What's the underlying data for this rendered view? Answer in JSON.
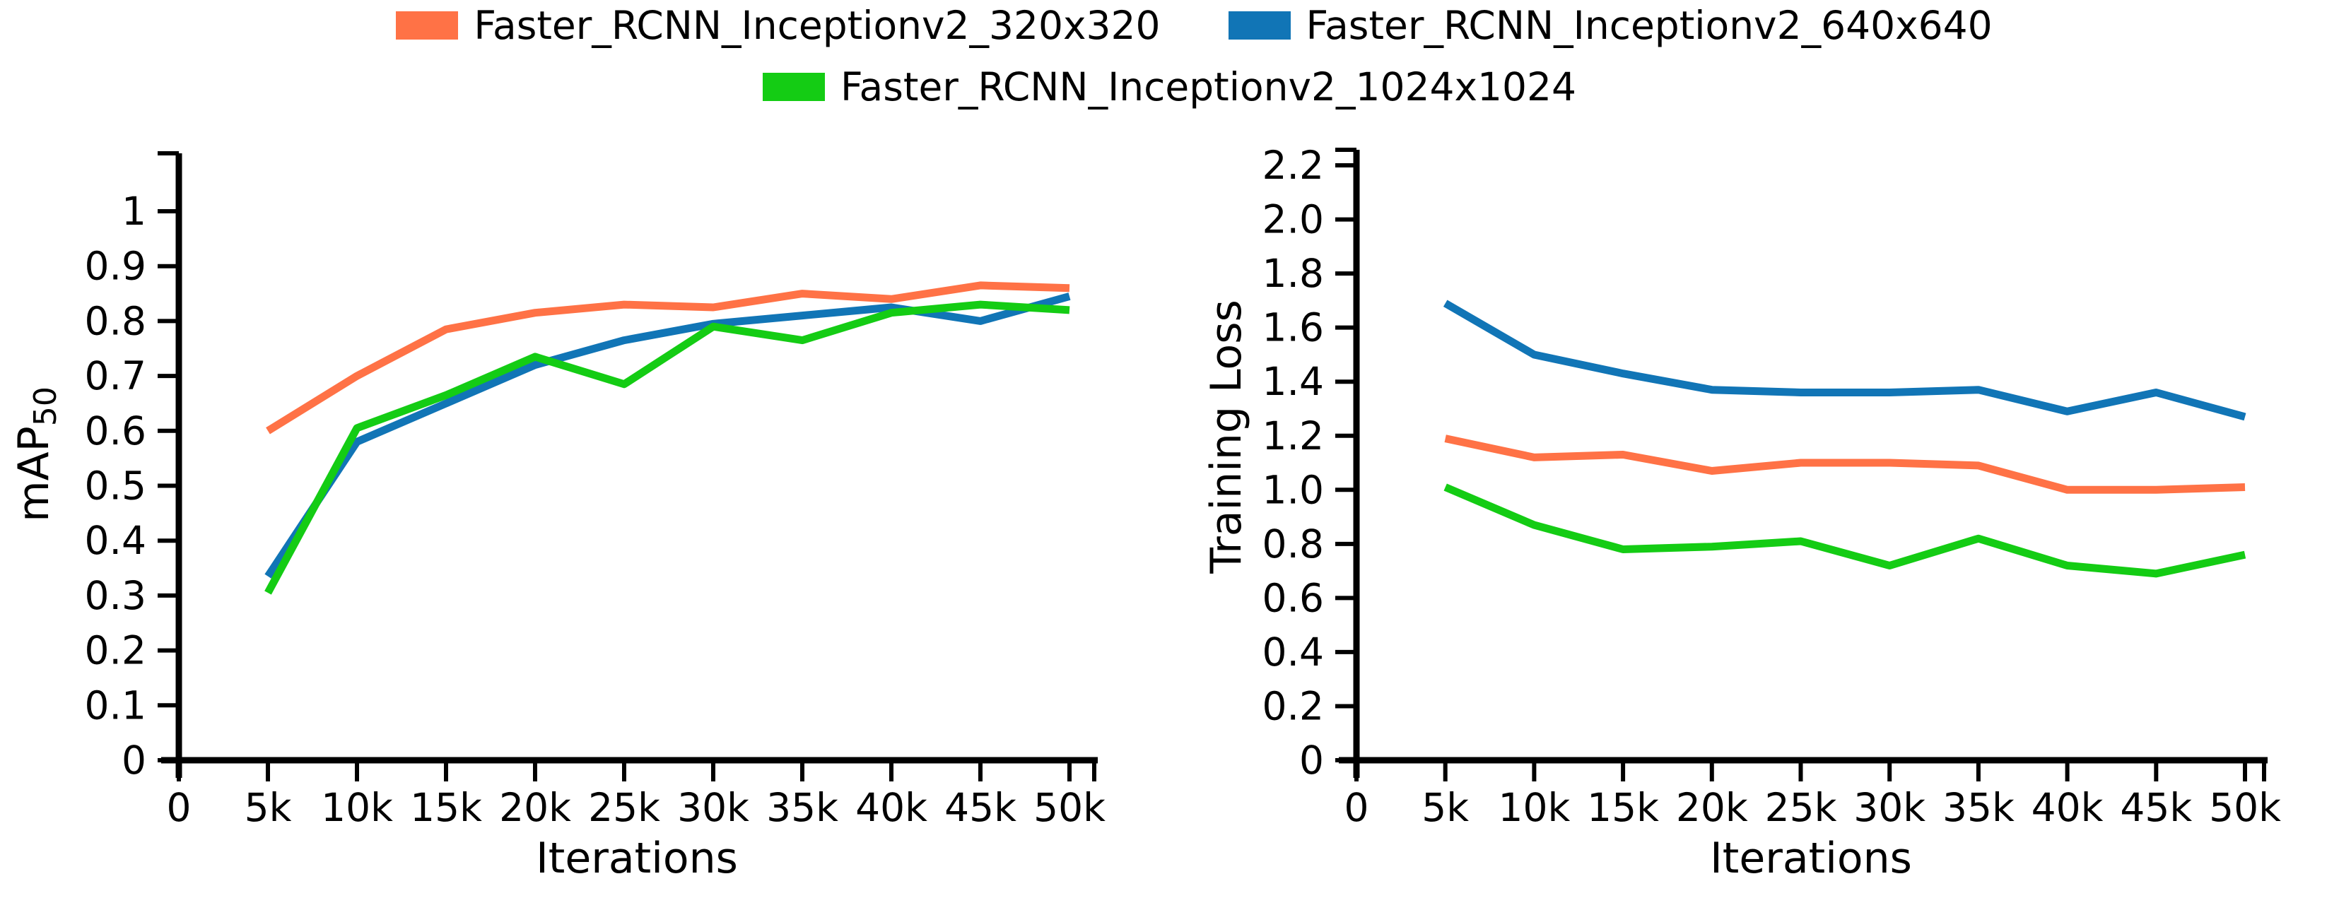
{
  "legend": {
    "items": [
      {
        "label": "Faster_RCNN_Inceptionv2_320x320",
        "color": "#FF7246"
      },
      {
        "label": "Faster_RCNN_Inceptionv2_640x640",
        "color": "#1175B6"
      },
      {
        "label": "Faster_RCNN_Inceptionv2_1024x1024",
        "color": "#14CC14"
      }
    ]
  },
  "chart_data": [
    {
      "type": "line",
      "title": "",
      "xlabel": "Iterations",
      "ylabel": "mAP50",
      "ylabel_base": "mAP",
      "ylabel_sub": "50",
      "x": [
        5000,
        10000,
        15000,
        20000,
        25000,
        30000,
        35000,
        40000,
        45000,
        50000
      ],
      "x_tick_values": [
        0,
        5000,
        10000,
        15000,
        20000,
        25000,
        30000,
        35000,
        40000,
        45000,
        50000
      ],
      "x_tick_labels": [
        "0",
        "5k",
        "10k",
        "15k",
        "20k",
        "25k",
        "30k",
        "35k",
        "40k",
        "45k",
        "50k"
      ],
      "y_tick_values": [
        0,
        0.1,
        0.2,
        0.3,
        0.4,
        0.5,
        0.6,
        0.7,
        0.8,
        0.9,
        1
      ],
      "y_tick_labels": [
        "0",
        "0.1",
        "0.2",
        "0.3",
        "0.4",
        "0.5",
        "0.6",
        "0.7",
        "0.8",
        "0.9",
        "1"
      ],
      "xlim": [
        0,
        51500
      ],
      "ylim": [
        0,
        1.1
      ],
      "grid": false,
      "legend_position": "top-center",
      "series": [
        {
          "name": "Faster_RCNN_Inceptionv2_320x320",
          "color": "#FF7246",
          "values": [
            0.6,
            0.7,
            0.785,
            0.815,
            0.83,
            0.825,
            0.85,
            0.84,
            0.865,
            0.86
          ]
        },
        {
          "name": "Faster_RCNN_Inceptionv2_640x640",
          "color": "#1175B6",
          "values": [
            0.335,
            0.58,
            0.65,
            0.72,
            0.765,
            0.795,
            0.81,
            0.825,
            0.8,
            0.845
          ]
        },
        {
          "name": "Faster_RCNN_Inceptionv2_1024x1024",
          "color": "#14CC14",
          "values": [
            0.305,
            0.605,
            0.665,
            0.735,
            0.685,
            0.79,
            0.765,
            0.815,
            0.83,
            0.82
          ]
        }
      ]
    },
    {
      "type": "line",
      "title": "",
      "xlabel": "Iterations",
      "ylabel": "Training Loss",
      "x": [
        5000,
        10000,
        15000,
        20000,
        25000,
        30000,
        35000,
        40000,
        45000,
        50000
      ],
      "x_tick_values": [
        0,
        5000,
        10000,
        15000,
        20000,
        25000,
        30000,
        35000,
        40000,
        45000,
        50000
      ],
      "x_tick_labels": [
        "0",
        "5k",
        "10k",
        "15k",
        "20k",
        "25k",
        "30k",
        "35k",
        "40k",
        "45k",
        "50k"
      ],
      "y_tick_values": [
        0,
        0.2,
        0.4,
        0.6,
        0.8,
        1.0,
        1.2,
        1.4,
        1.6,
        1.8,
        2.0,
        2.2
      ],
      "y_tick_labels": [
        "0",
        "0.2",
        "0.4",
        "0.6",
        "0.8",
        "1.0",
        "1.2",
        "1.4",
        "1.6",
        "1.8",
        "2.0",
        "2.2"
      ],
      "xlim": [
        0,
        51500
      ],
      "ylim": [
        0,
        2.3
      ],
      "grid": false,
      "legend_position": "top-center",
      "series": [
        {
          "name": "Faster_RCNN_Inceptionv2_320x320",
          "color": "#FF7246",
          "values": [
            1.19,
            1.12,
            1.13,
            1.07,
            1.1,
            1.1,
            1.09,
            1.0,
            1.0,
            1.01
          ]
        },
        {
          "name": "Faster_RCNN_Inceptionv2_640x640",
          "color": "#1175B6",
          "values": [
            1.69,
            1.5,
            1.43,
            1.37,
            1.36,
            1.36,
            1.37,
            1.29,
            1.36,
            1.27
          ]
        },
        {
          "name": "Faster_RCNN_Inceptionv2_1024x1024",
          "color": "#14CC14",
          "values": [
            1.01,
            0.87,
            0.78,
            0.79,
            0.81,
            0.72,
            0.82,
            0.72,
            0.69,
            0.76
          ]
        }
      ]
    }
  ]
}
